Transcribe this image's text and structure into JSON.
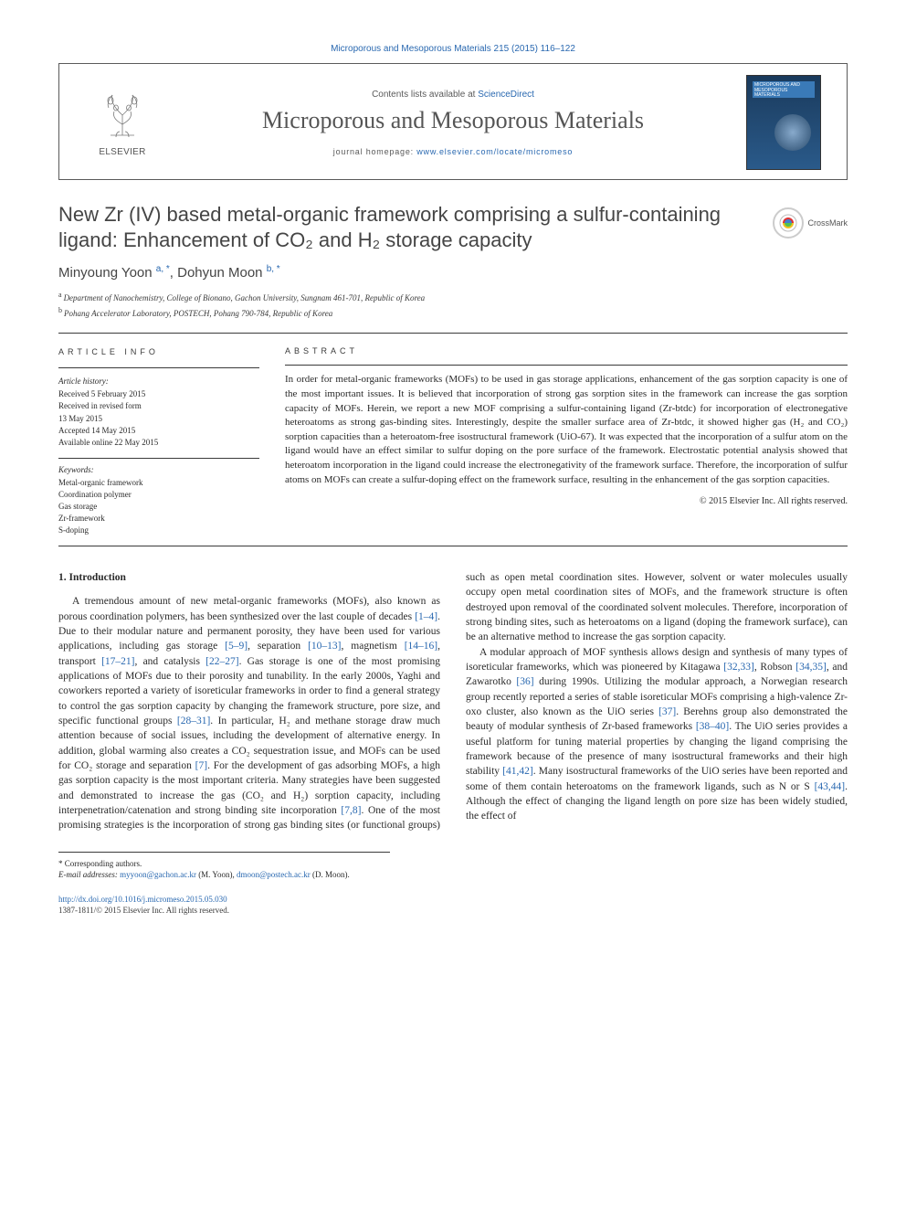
{
  "citation": "Microporous and Mesoporous Materials 215 (2015) 116–122",
  "masthead": {
    "publisher": "ELSEVIER",
    "contents_prefix": "Contents lists available at ",
    "contents_link": "ScienceDirect",
    "journal": "Microporous and Mesoporous Materials",
    "homepage_prefix": "journal homepage: ",
    "homepage_url": "www.elsevier.com/locate/micromeso",
    "cover_label": "MICROPOROUS AND MESOPOROUS MATERIALS"
  },
  "title": "New Zr (IV) based metal-organic framework comprising a sulfur-containing ligand: Enhancement of CO₂ and H₂ storage capacity",
  "crossmark": "CrossMark",
  "authors_html": "Minyoung Yoon <sup>a, *</sup>, Dohyun Moon <sup>b, *</sup>",
  "affiliations": [
    {
      "sup": "a",
      "text": "Department of Nanochemistry, College of Bionano, Gachon University, Sungnam 461-701, Republic of Korea"
    },
    {
      "sup": "b",
      "text": "Pohang Accelerator Laboratory, POSTECH, Pohang 790-784, Republic of Korea"
    }
  ],
  "labels": {
    "article_info": "ARTICLE INFO",
    "abstract": "ABSTRACT",
    "history": "Article history:",
    "keywords": "Keywords:"
  },
  "history": [
    "Received 5 February 2015",
    "Received in revised form",
    "13 May 2015",
    "Accepted 14 May 2015",
    "Available online 22 May 2015"
  ],
  "keywords": [
    "Metal-organic framework",
    "Coordination polymer",
    "Gas storage",
    "Zr-framework",
    "S-doping"
  ],
  "abstract": "In order for metal-organic frameworks (MOFs) to be used in gas storage applications, enhancement of the gas sorption capacity is one of the most important issues. It is believed that incorporation of strong gas sorption sites in the framework can increase the gas sorption capacity of MOFs. Herein, we report a new MOF comprising a sulfur-containing ligand (Zr-btdc) for incorporation of electronegative heteroatoms as strong gas-binding sites. Interestingly, despite the smaller surface area of Zr-btdc, it showed higher gas (H₂ and CO₂) sorption capacities than a heteroatom-free isostructural framework (UiO-67). It was expected that the incorporation of a sulfur atom on the ligand would have an effect similar to sulfur doping on the pore surface of the framework. Electrostatic potential analysis showed that heteroatom incorporation in the ligand could increase the electronegativity of the framework surface. Therefore, the incorporation of sulfur atoms on MOFs can create a sulfur-doping effect on the framework surface, resulting in the enhancement of the gas sorption capacities.",
  "copyright": "© 2015 Elsevier Inc. All rights reserved.",
  "intro_heading": "1. Introduction",
  "intro": {
    "p1_a": "A tremendous amount of new metal-organic frameworks (MOFs), also known as porous coordination polymers, has been synthesized over the last couple of decades ",
    "p1_r1": "[1–4]",
    "p1_b": ". Due to their modular nature and permanent porosity, they have been used for various applications, including gas storage ",
    "p1_r2": "[5–9]",
    "p1_c": ", separation ",
    "p1_r3": "[10–13]",
    "p1_d": ", magnetism ",
    "p1_r4": "[14–16]",
    "p1_e": ", transport ",
    "p1_r5": "[17–21]",
    "p1_f": ", and catalysis ",
    "p1_r6": "[22–27]",
    "p1_g": ". Gas storage is one of the most promising applications of MOFs due to their porosity and tunability. In the early 2000s, Yaghi and coworkers reported a variety of isoreticular frameworks in order to find a general strategy to control the gas sorption capacity by changing the framework structure, pore size, and specific functional groups ",
    "p1_r7": "[28–31]",
    "p1_h": ". In particular, H₂ and methane storage draw much attention because of social issues, including the development of alternative energy. In addition, global warming also creates a CO₂ sequestration issue, and MOFs can be used for CO₂ storage and separation ",
    "p1_r8": "[7]",
    "p1_i": ". For the development of gas adsorbing MOFs, a high gas sorption capacity is the most important criteria. Many strategies have been suggested and demonstrated to ",
    "p1_j": "increase the gas (CO₂ and H₂) sorption capacity, including interpenetration/catenation and strong binding site incorporation ",
    "p1_r9": "[7,8]",
    "p1_k": ". One of the most promising strategies is the incorporation of strong gas binding sites (or functional groups) such as open metal coordination sites. However, solvent or water molecules usually occupy open metal coordination sites of MOFs, and the framework structure is often destroyed upon removal of the coordinated solvent molecules. Therefore, incorporation of strong binding sites, such as heteroatoms on a ligand (doping the framework surface), can be an alternative method to increase the gas sorption capacity.",
    "p2_a": "A modular approach of MOF synthesis allows design and synthesis of many types of isoreticular frameworks, which was pioneered by Kitagawa ",
    "p2_r1": "[32,33]",
    "p2_b": ", Robson ",
    "p2_r2": "[34,35]",
    "p2_c": ", and Zawarotko ",
    "p2_r3": "[36]",
    "p2_d": " during 1990s. Utilizing the modular approach, a Norwegian research group recently reported a series of stable isoreticular MOFs comprising a high-valence Zr-oxo cluster, also known as the UiO series ",
    "p2_r4": "[37]",
    "p2_e": ". Berehns group also demonstrated the beauty of modular synthesis of Zr-based frameworks ",
    "p2_r5": "[38–40]",
    "p2_f": ". The UiO series provides a useful platform for tuning material properties by changing the ligand comprising the framework because of the presence of many isostructural frameworks and their high stability ",
    "p2_r6": "[41,42]",
    "p2_g": ". Many isostructural frameworks of the UiO series have been reported and some of them contain heteroatoms on the framework ligands, such as N or S ",
    "p2_r7": "[43,44]",
    "p2_h": ". Although the effect of changing the ligand length on pore size has been widely studied, the effect of"
  },
  "footnotes": {
    "corresp": "* Corresponding authors.",
    "email_label": "E-mail addresses:",
    "email1": "myyoon@gachon.ac.kr",
    "email1_paren": " (M. Yoon), ",
    "email2": "dmoon@postech.ac.kr",
    "email2_paren": " (D. Moon)."
  },
  "footer": {
    "doi": "http://dx.doi.org/10.1016/j.micromeso.2015.05.030",
    "issn_line": "1387-1811/© 2015 Elsevier Inc. All rights reserved."
  },
  "colors": {
    "link": "#2968b0",
    "heading": "#454545",
    "rule": "#3a3a3a"
  }
}
